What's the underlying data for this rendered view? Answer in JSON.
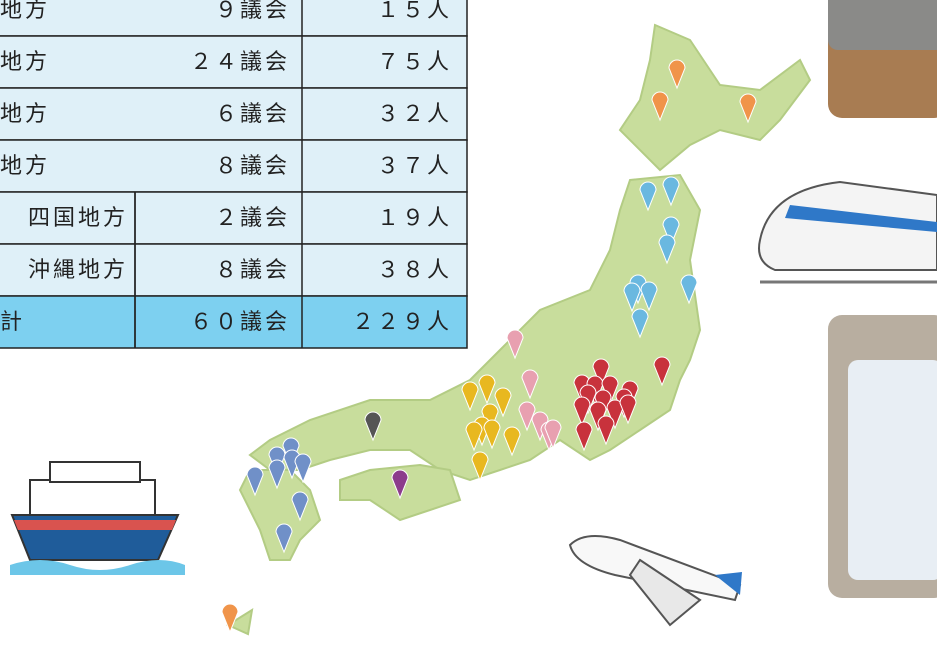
{
  "table": {
    "rows": [
      [
        "地方",
        "９議会",
        "１５人"
      ],
      [
        "地方",
        "２４議会",
        "７５人"
      ],
      [
        "地方",
        "６議会",
        "３２人"
      ],
      [
        "地方",
        "８議会",
        "３７人"
      ],
      [
        "四国地方",
        "２議会",
        "１９人"
      ],
      [
        "沖縄地方",
        "８議会",
        "３８人"
      ],
      [
        "計",
        "６０議会",
        "２２９人"
      ]
    ]
  }
}
